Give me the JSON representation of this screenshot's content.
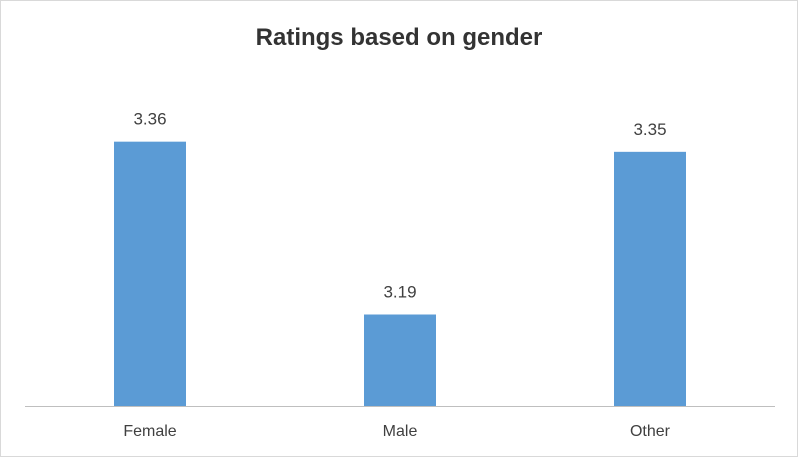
{
  "chart_data": {
    "type": "bar",
    "title": "Ratings based on gender",
    "categories": [
      "Female",
      "Male",
      "Other"
    ],
    "values": [
      3.36,
      3.19,
      3.35
    ],
    "data_labels": [
      "3.36",
      "3.19",
      "3.35"
    ],
    "xlabel": "",
    "ylabel": "",
    "ylim": [
      3.1,
      3.4
    ],
    "grid": false,
    "legend": "none",
    "bar_color": "#5b9bd5",
    "axis_color": "#bfbfbf"
  }
}
